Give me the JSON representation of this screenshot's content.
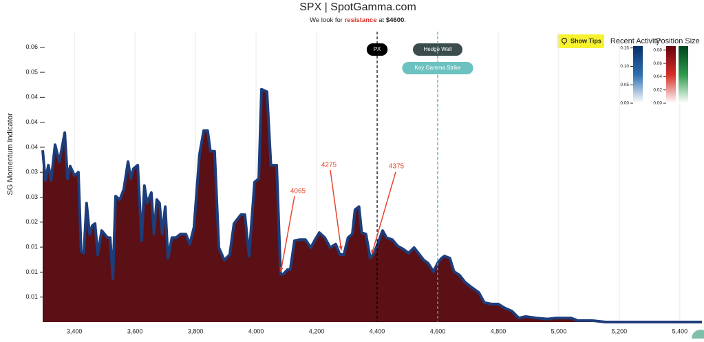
{
  "chart_data": {
    "type": "area",
    "title": "SPX | SpotGamma.com",
    "subtitle": {
      "prefix": "We look for",
      "highlight": "resistance",
      "middle": "at",
      "level": "$4600",
      "suffix": "."
    },
    "y_label": "SG Momentum Indicator",
    "x": [
      3295,
      3304,
      3314,
      3323,
      3336,
      3350,
      3368,
      3377,
      3386,
      3400,
      3413,
      3422,
      3431,
      3440,
      3450,
      3459,
      3468,
      3477,
      3490,
      3509,
      3518,
      3527,
      3536,
      3550,
      3563,
      3577,
      3586,
      3595,
      3609,
      3622,
      3631,
      3640,
      3654,
      3663,
      3672,
      3681,
      3690,
      3700,
      3709,
      3722,
      3736,
      3750,
      3768,
      3781,
      3795,
      3813,
      3827,
      3840,
      3849,
      3863,
      3877,
      3895,
      3913,
      3927,
      3950,
      3963,
      3977,
      3995,
      4009,
      4018,
      4036,
      4049,
      4068,
      4081,
      4090,
      4104,
      4113,
      4127,
      4145,
      4163,
      4181,
      4195,
      4209,
      4227,
      4245,
      4263,
      4277,
      4290,
      4304,
      4318,
      4327,
      4340,
      4349,
      4363,
      4377,
      4390,
      4404,
      4418,
      4431,
      4450,
      4468,
      4486,
      4504,
      4522,
      4540,
      4554,
      4568,
      4586,
      4600,
      4613,
      4622,
      4640,
      4654,
      4672,
      4690,
      4713,
      4736,
      4754,
      4777,
      4800,
      4822,
      4845,
      4868,
      4890,
      4927,
      4963,
      4990,
      5040,
      5063,
      5109,
      5154,
      5473
    ],
    "series": [
      {
        "color": "#5a1015",
        "line_color": "#1e3d7b",
        "values": [
          0.0344,
          0.0284,
          0.0314,
          0.0284,
          0.0355,
          0.0321,
          0.0379,
          0.0287,
          0.0312,
          0.0293,
          0.03,
          0.0142,
          0.0138,
          0.0238,
          0.0176,
          0.0193,
          0.0197,
          0.0135,
          0.0183,
          0.0169,
          0.0169,
          0.0087,
          0.0252,
          0.0245,
          0.0266,
          0.0321,
          0.0287,
          0.0307,
          0.0314,
          0.0163,
          0.0273,
          0.0238,
          0.0259,
          0.0176,
          0.0245,
          0.0238,
          0.0176,
          0.0231,
          0.0128,
          0.0169,
          0.0169,
          0.0176,
          0.0176,
          0.0156,
          0.019,
          0.0335,
          0.0383,
          0.0383,
          0.0342,
          0.0342,
          0.0149,
          0.0124,
          0.0135,
          0.0197,
          0.0215,
          0.0215,
          0.0132,
          0.028,
          0.0287,
          0.0466,
          0.0461,
          0.0314,
          0.0314,
          0.0096,
          0.0096,
          0.0105,
          0.0105,
          0.0163,
          0.0165,
          0.0165,
          0.0149,
          0.0165,
          0.0179,
          0.0169,
          0.0149,
          0.0156,
          0.0135,
          0.0135,
          0.0169,
          0.0176,
          0.0225,
          0.0231,
          0.0179,
          0.0176,
          0.0128,
          0.0138,
          0.016,
          0.0183,
          0.0169,
          0.0165,
          0.0152,
          0.0146,
          0.0138,
          0.0149,
          0.0135,
          0.0124,
          0.0118,
          0.0101,
          0.0118,
          0.0128,
          0.0132,
          0.0128,
          0.0101,
          0.0094,
          0.008,
          0.0069,
          0.0059,
          0.0039,
          0.0036,
          0.0036,
          0.0028,
          0.0022,
          0.0008,
          0.0011,
          0.0008,
          0.0006,
          0.0008,
          0.0008,
          0.0003,
          0.0003,
          0,
          0
        ]
      }
    ],
    "xlim": [
      3295,
      5473
    ],
    "ylim": [
      0,
      0.058
    ],
    "xticks": [
      {
        "value": 3400,
        "label": "3,400"
      },
      {
        "value": 3600,
        "label": "3,600"
      },
      {
        "value": 3800,
        "label": "3,800"
      },
      {
        "value": 4000,
        "label": "4,000"
      },
      {
        "value": 4200,
        "label": "4,200"
      },
      {
        "value": 4400,
        "label": "4,400"
      },
      {
        "value": 4600,
        "label": "4,600"
      },
      {
        "value": 4800,
        "label": "4,800"
      },
      {
        "value": 5000,
        "label": "5,000"
      },
      {
        "value": 5200,
        "label": "5,200"
      },
      {
        "value": 5400,
        "label": "5,400"
      }
    ],
    "yticks": [
      {
        "value": 0.005,
        "label": "0.01"
      },
      {
        "value": 0.01,
        "label": "0.01"
      },
      {
        "value": 0.015,
        "label": "0.01"
      },
      {
        "value": 0.02,
        "label": "0.02"
      },
      {
        "value": 0.025,
        "label": "0.03"
      },
      {
        "value": 0.03,
        "label": "0.03"
      },
      {
        "value": 0.035,
        "label": "0.04"
      },
      {
        "value": 0.04,
        "label": "0.04"
      },
      {
        "value": 0.045,
        "label": "0.04"
      },
      {
        "value": 0.05,
        "label": "0.05"
      },
      {
        "value": 0.055,
        "label": "0.06"
      }
    ],
    "grid": true,
    "markers": [
      {
        "label": "PX",
        "value": 4400,
        "color": "#000000",
        "pill": "#000000"
      },
      {
        "label": "Hedge Wall",
        "value": 4600,
        "color": "#3a4c4c",
        "pill": "#3a4c4c"
      },
      {
        "label": "Key Gamma Strike",
        "value": 4600,
        "color": "#5cb8b8",
        "pill": "#6cc2c0"
      }
    ],
    "annotations": [
      {
        "label": "4065"
      },
      {
        "label": "4275"
      },
      {
        "label": "4375"
      }
    ],
    "annotation_color": "#e8452c",
    "tips_button": "Show Tips",
    "colorbars": [
      {
        "title": "Recent Activity",
        "range": [
          0,
          0.155
        ],
        "ticks": [
          0.15,
          {
            "value": 0.1,
            "label": "0.10"
          },
          0.05,
          {
            "value": 0,
            "label": "0.00"
          }
        ],
        "gradients": [
          [
            "#08306b",
            "#2f6fb0",
            "#ffffff"
          ]
        ]
      },
      {
        "title": "Position Size",
        "range": [
          0,
          0.086
        ],
        "ticks": [
          0.08,
          0.06,
          0.04,
          0.02,
          {
            "value": 0,
            "label": "0.00"
          }
        ],
        "gradients": [
          [
            "#67000d",
            "#d62f27",
            "#ffffff"
          ],
          [
            "#00441b",
            "#2f9a4c",
            "#ffffff"
          ]
        ]
      }
    ]
  }
}
